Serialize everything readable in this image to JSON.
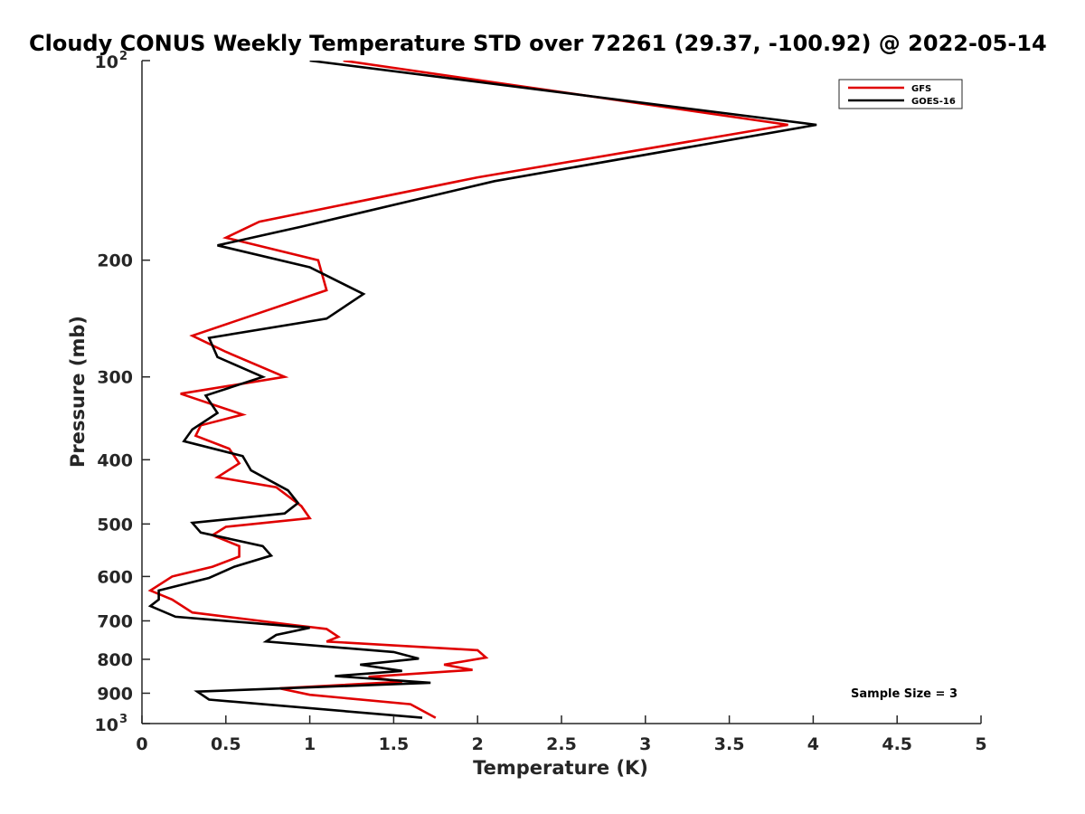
{
  "chart_data": {
    "type": "line",
    "title": "Cloudy CONUS Weekly Temperature STD over 72261 (29.37, -100.92) @ 2022-05-14",
    "xlabel": "Temperature (K)",
    "ylabel": "Pressure (mb)",
    "xlim": [
      0,
      5
    ],
    "ylim": [
      100,
      1000
    ],
    "y_scale": "log",
    "y_reversed": true,
    "grid": false,
    "legend_position": "top-right",
    "x_ticks": [
      "0",
      "0.5",
      "1",
      "1.5",
      "2",
      "2.5",
      "3",
      "3.5",
      "4",
      "4.5",
      "5"
    ],
    "y_ticks": [
      {
        "value": 100,
        "base": "10",
        "exp": "2"
      },
      {
        "value": 200,
        "label": "200"
      },
      {
        "value": 300,
        "label": "300"
      },
      {
        "value": 400,
        "label": "400"
      },
      {
        "value": 500,
        "label": "500"
      },
      {
        "value": 600,
        "label": "600"
      },
      {
        "value": 700,
        "label": "700"
      },
      {
        "value": 800,
        "label": "800"
      },
      {
        "value": 900,
        "label": "900"
      },
      {
        "value": 1000,
        "base": "10",
        "exp": "3"
      }
    ],
    "annotation": "Sample Size = 3",
    "series": [
      {
        "name": "GFS",
        "color": "#e00000",
        "points": [
          [
            1.2,
            100
          ],
          [
            3.85,
            125
          ],
          [
            2.0,
            150
          ],
          [
            0.7,
            175
          ],
          [
            0.5,
            185
          ],
          [
            1.05,
            200
          ],
          [
            1.1,
            222
          ],
          [
            0.6,
            245
          ],
          [
            0.3,
            260
          ],
          [
            0.5,
            275
          ],
          [
            0.85,
            300
          ],
          [
            0.23,
            318
          ],
          [
            0.6,
            342
          ],
          [
            0.35,
            355
          ],
          [
            0.32,
            368
          ],
          [
            0.52,
            385
          ],
          [
            0.58,
            405
          ],
          [
            0.45,
            425
          ],
          [
            0.8,
            440
          ],
          [
            0.95,
            470
          ],
          [
            1.0,
            490
          ],
          [
            0.5,
            505
          ],
          [
            0.42,
            520
          ],
          [
            0.58,
            540
          ],
          [
            0.58,
            560
          ],
          [
            0.42,
            580
          ],
          [
            0.18,
            600
          ],
          [
            0.05,
            630
          ],
          [
            0.18,
            650
          ],
          [
            0.3,
            680
          ],
          [
            0.9,
            710
          ],
          [
            1.1,
            720
          ],
          [
            1.17,
            740
          ],
          [
            1.1,
            752
          ],
          [
            2.0,
            775
          ],
          [
            2.05,
            795
          ],
          [
            1.8,
            815
          ],
          [
            1.97,
            830
          ],
          [
            1.35,
            850
          ],
          [
            1.55,
            865
          ],
          [
            0.82,
            885
          ],
          [
            1.0,
            905
          ],
          [
            1.6,
            935
          ],
          [
            1.75,
            980
          ]
        ]
      },
      {
        "name": "GOES-16",
        "color": "#000000",
        "points": [
          [
            1.0,
            100
          ],
          [
            4.02,
            125
          ],
          [
            2.1,
            152
          ],
          [
            0.95,
            178
          ],
          [
            0.45,
            190
          ],
          [
            1.0,
            205
          ],
          [
            1.32,
            225
          ],
          [
            1.1,
            245
          ],
          [
            0.4,
            262
          ],
          [
            0.45,
            280
          ],
          [
            0.72,
            300
          ],
          [
            0.38,
            320
          ],
          [
            0.45,
            340
          ],
          [
            0.3,
            360
          ],
          [
            0.25,
            375
          ],
          [
            0.6,
            395
          ],
          [
            0.65,
            415
          ],
          [
            0.87,
            445
          ],
          [
            0.93,
            465
          ],
          [
            0.85,
            482
          ],
          [
            0.3,
            498
          ],
          [
            0.35,
            515
          ],
          [
            0.72,
            540
          ],
          [
            0.77,
            558
          ],
          [
            0.55,
            580
          ],
          [
            0.4,
            603
          ],
          [
            0.1,
            630
          ],
          [
            0.1,
            650
          ],
          [
            0.05,
            665
          ],
          [
            0.2,
            690
          ],
          [
            1.0,
            717
          ],
          [
            0.8,
            735
          ],
          [
            0.74,
            752
          ],
          [
            1.5,
            780
          ],
          [
            1.65,
            798
          ],
          [
            1.3,
            815
          ],
          [
            1.55,
            833
          ],
          [
            1.15,
            848
          ],
          [
            1.72,
            868
          ],
          [
            0.33,
            895
          ],
          [
            0.4,
            920
          ],
          [
            1.67,
            980
          ]
        ]
      }
    ]
  }
}
